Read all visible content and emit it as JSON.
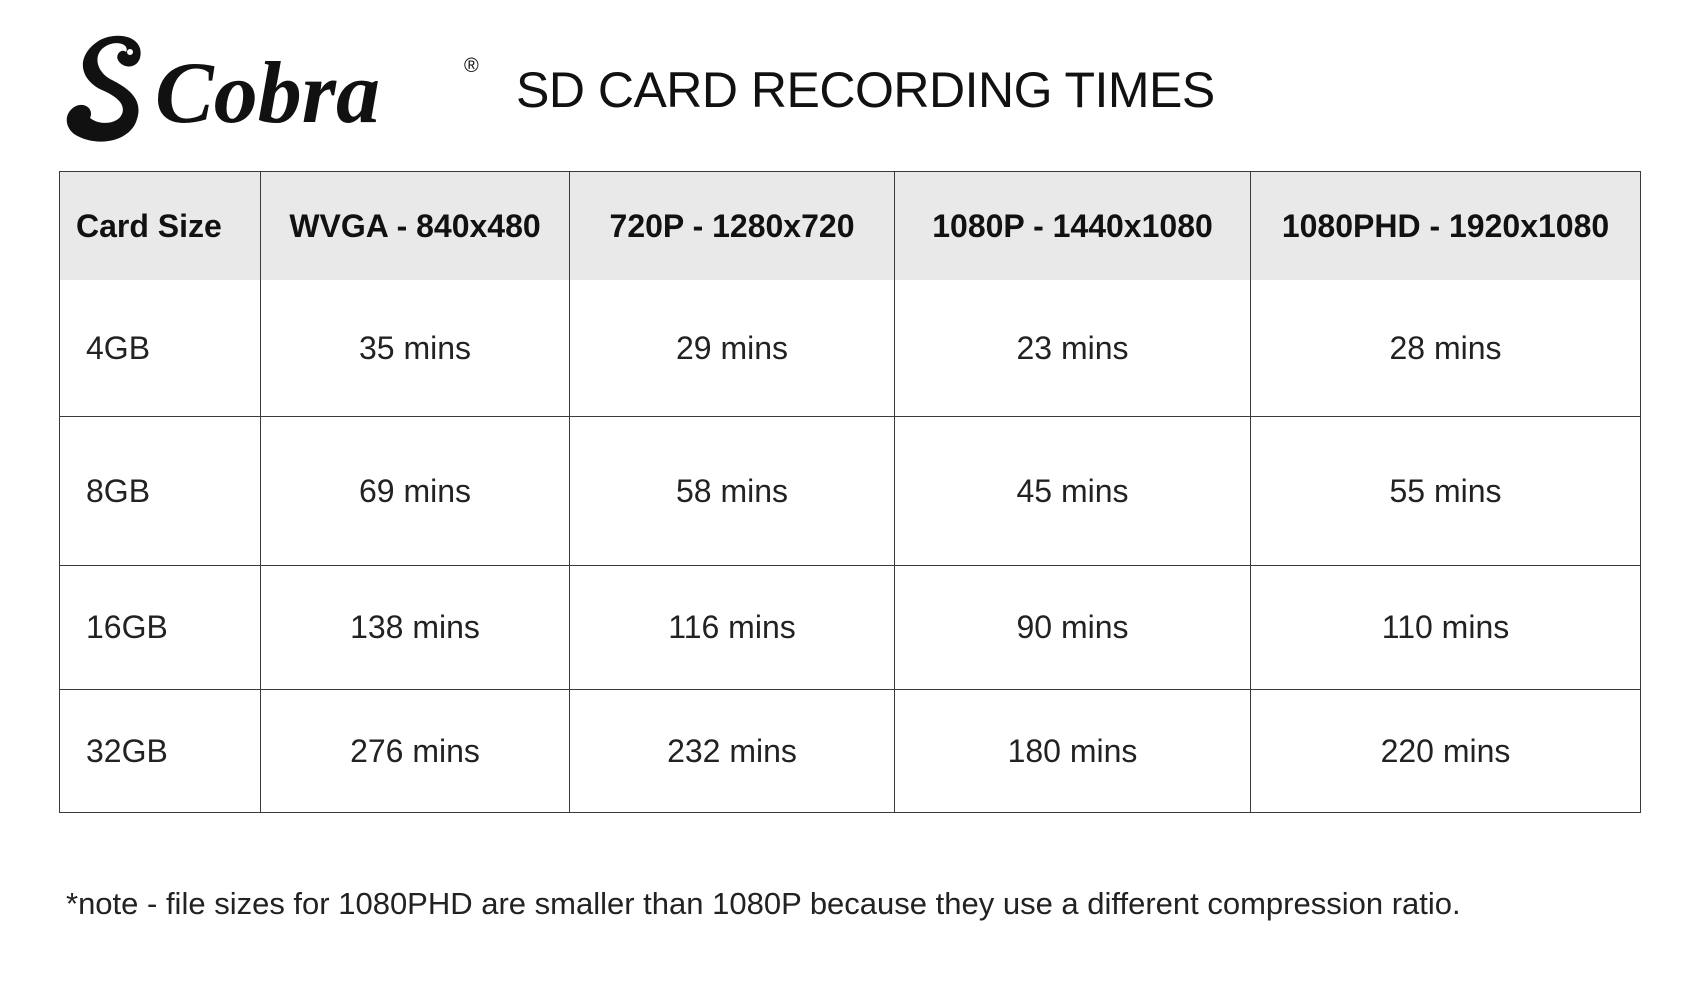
{
  "brand": {
    "logo_name": "Cobra",
    "registered_mark": "®"
  },
  "title": "SD CARD RECORDING TIMES",
  "table": {
    "headers": [
      "Card Size",
      "WVGA - 840x480",
      "720P - 1280x720",
      "1080P - 1440x1080",
      "1080PHD - 1920x1080"
    ],
    "rows": [
      [
        "4GB",
        "35 mins",
        "29 mins",
        "23 mins",
        "28 mins"
      ],
      [
        "8GB",
        "69 mins",
        "58 mins",
        "45 mins",
        "55 mins"
      ],
      [
        "16GB",
        "138 mins",
        "116 mins",
        "90 mins",
        "110 mins"
      ],
      [
        "32GB",
        "276 mins",
        "232 mins",
        "180 mins",
        "220 mins"
      ]
    ]
  },
  "note": "*note - file sizes for 1080PHD are smaller than 1080P because they use a different compression ratio."
}
